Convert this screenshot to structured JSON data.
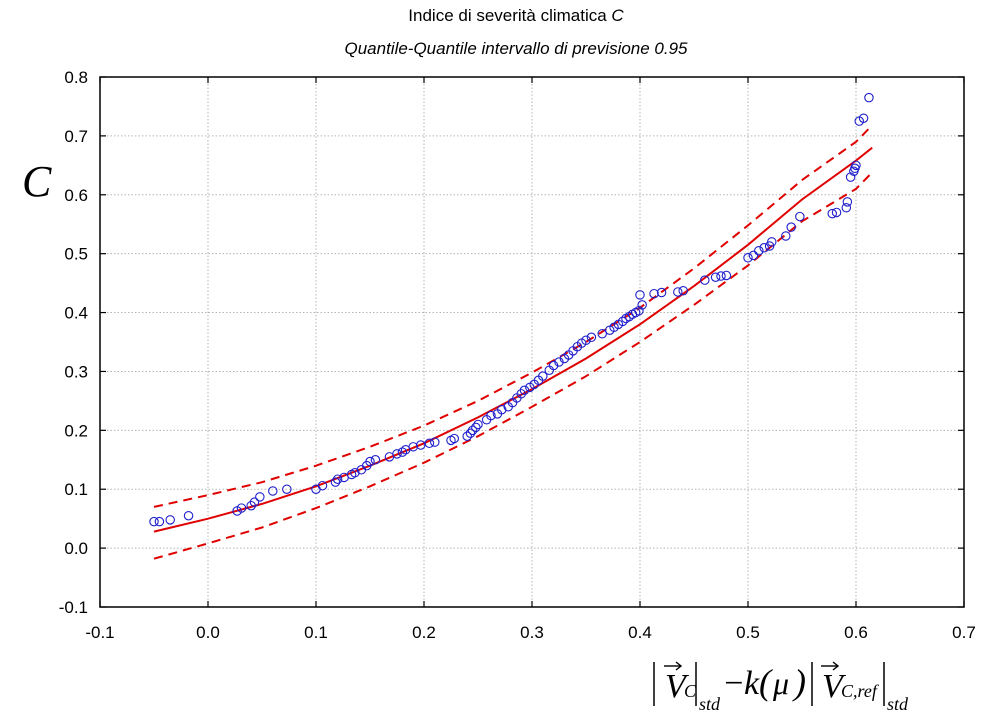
{
  "chart_data": {
    "type": "scatter",
    "title_prefix": "Indice di severità climatica ",
    "title_symbol": "C",
    "subtitle": "Quantile-Quantile intervallo di previsione 0.95",
    "ylabel": "C",
    "xlabel_parts": {
      "v": "V",
      "sub_c": "C",
      "sub_std": "std",
      "minus": "−",
      "k": "k",
      "mu": "μ",
      "sub_cref": "C,ref"
    },
    "xlim": [
      -0.1,
      0.7
    ],
    "ylim": [
      -0.1,
      0.8
    ],
    "xticks": [
      "-0.1",
      "0.0",
      "0.1",
      "0.2",
      "0.3",
      "0.4",
      "0.5",
      "0.6",
      "0.7"
    ],
    "yticks": [
      "-0.1",
      "0.0",
      "0.1",
      "0.2",
      "0.3",
      "0.4",
      "0.5",
      "0.6",
      "0.7",
      "0.8"
    ],
    "grid": true,
    "colors": {
      "points": "#1f1fcc",
      "fit": "#e00000"
    },
    "series": [
      {
        "kind": "points",
        "x": [
          -0.05,
          -0.045,
          -0.035,
          -0.018,
          0.027,
          0.031,
          0.04,
          0.043,
          0.048,
          0.06,
          0.073,
          0.1,
          0.106,
          0.118,
          0.12,
          0.126,
          0.133,
          0.136,
          0.142,
          0.147,
          0.15,
          0.155,
          0.168,
          0.175,
          0.18,
          0.183,
          0.19,
          0.197,
          0.205,
          0.21,
          0.225,
          0.228,
          0.24,
          0.243,
          0.245,
          0.248,
          0.25,
          0.258,
          0.262,
          0.268,
          0.272,
          0.278,
          0.282,
          0.286,
          0.29,
          0.293,
          0.298,
          0.302,
          0.306,
          0.31,
          0.316,
          0.32,
          0.325,
          0.33,
          0.334,
          0.338,
          0.342,
          0.346,
          0.35,
          0.355,
          0.365,
          0.372,
          0.376,
          0.38,
          0.384,
          0.387,
          0.39,
          0.393,
          0.396,
          0.399,
          0.4,
          0.402,
          0.413,
          0.42,
          0.435,
          0.44,
          0.46,
          0.47,
          0.475,
          0.48,
          0.5,
          0.505,
          0.51,
          0.515,
          0.52,
          0.522,
          0.535,
          0.54,
          0.548,
          0.578,
          0.582,
          0.591,
          0.592,
          0.595,
          0.598,
          0.599,
          0.6,
          0.603,
          0.607,
          0.612
        ],
        "y": [
          0.045,
          0.045,
          0.048,
          0.055,
          0.063,
          0.068,
          0.072,
          0.078,
          0.087,
          0.097,
          0.1,
          0.1,
          0.106,
          0.112,
          0.117,
          0.12,
          0.125,
          0.128,
          0.133,
          0.14,
          0.147,
          0.15,
          0.155,
          0.16,
          0.163,
          0.167,
          0.172,
          0.175,
          0.178,
          0.18,
          0.183,
          0.186,
          0.19,
          0.195,
          0.2,
          0.205,
          0.21,
          0.218,
          0.225,
          0.228,
          0.235,
          0.24,
          0.247,
          0.255,
          0.262,
          0.268,
          0.273,
          0.278,
          0.285,
          0.292,
          0.302,
          0.31,
          0.316,
          0.322,
          0.328,
          0.335,
          0.342,
          0.348,
          0.353,
          0.358,
          0.364,
          0.37,
          0.375,
          0.38,
          0.385,
          0.39,
          0.393,
          0.397,
          0.4,
          0.403,
          0.43,
          0.413,
          0.432,
          0.434,
          0.435,
          0.437,
          0.455,
          0.46,
          0.462,
          0.463,
          0.493,
          0.497,
          0.505,
          0.51,
          0.513,
          0.52,
          0.53,
          0.545,
          0.563,
          0.568,
          0.57,
          0.578,
          0.588,
          0.63,
          0.64,
          0.645,
          0.65,
          0.725,
          0.73,
          0.765
        ]
      },
      {
        "kind": "fit-line",
        "x": [
          -0.05,
          0.0,
          0.05,
          0.1,
          0.15,
          0.2,
          0.25,
          0.3,
          0.35,
          0.4,
          0.45,
          0.5,
          0.55,
          0.6,
          0.615
        ],
        "y": [
          0.028,
          0.05,
          0.075,
          0.105,
          0.14,
          0.178,
          0.222,
          0.27,
          0.322,
          0.38,
          0.445,
          0.515,
          0.592,
          0.658,
          0.68
        ]
      },
      {
        "kind": "upper-band",
        "x": [
          -0.05,
          0.0,
          0.05,
          0.1,
          0.15,
          0.2,
          0.25,
          0.3,
          0.35,
          0.4,
          0.45,
          0.5,
          0.55,
          0.6,
          0.615
        ],
        "y": [
          0.07,
          0.09,
          0.112,
          0.14,
          0.172,
          0.208,
          0.25,
          0.298,
          0.35,
          0.408,
          0.475,
          0.548,
          0.625,
          0.69,
          0.718
        ]
      },
      {
        "kind": "lower-band",
        "x": [
          -0.05,
          0.0,
          0.05,
          0.1,
          0.15,
          0.2,
          0.25,
          0.3,
          0.35,
          0.4,
          0.45,
          0.5,
          0.55,
          0.6,
          0.615
        ],
        "y": [
          -0.018,
          0.008,
          0.035,
          0.068,
          0.105,
          0.145,
          0.19,
          0.24,
          0.292,
          0.35,
          0.413,
          0.48,
          0.555,
          0.61,
          0.638
        ]
      }
    ]
  }
}
